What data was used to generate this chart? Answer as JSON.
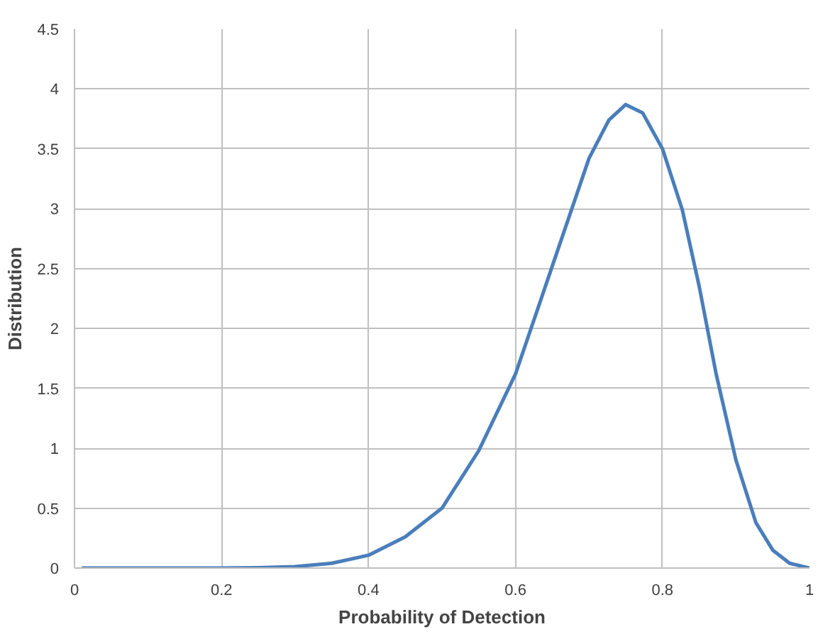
{
  "chart_data": {
    "type": "line",
    "xlabel": "Probability of Detection",
    "ylabel": "Distribution",
    "xlim": [
      0,
      1
    ],
    "ylim": [
      0,
      4.5
    ],
    "xticks": [
      0,
      0.2,
      0.4,
      0.6,
      0.8,
      1
    ],
    "yticks": [
      0,
      0.5,
      1,
      1.5,
      2,
      2.5,
      3,
      3.5,
      4,
      4.5
    ],
    "grid": true,
    "line_style": "solid",
    "series": [
      {
        "color": "#4a7ebb",
        "x": [
          0.01,
          0.1,
          0.2,
          0.25,
          0.3,
          0.35,
          0.4,
          0.45,
          0.5,
          0.55,
          0.6,
          0.65,
          0.7,
          0.727,
          0.75,
          0.773,
          0.8,
          0.827,
          0.85,
          0.873,
          0.9,
          0.927,
          0.95,
          0.973,
          1.0
        ],
        "values": [
          0,
          0,
          0,
          0.003,
          0.012,
          0.04,
          0.107,
          0.26,
          0.5,
          0.98,
          1.62,
          2.52,
          3.42,
          3.74,
          3.87,
          3.8,
          3.5,
          2.99,
          2.35,
          1.62,
          0.9,
          0.38,
          0.15,
          0.04,
          0
        ]
      }
    ]
  }
}
